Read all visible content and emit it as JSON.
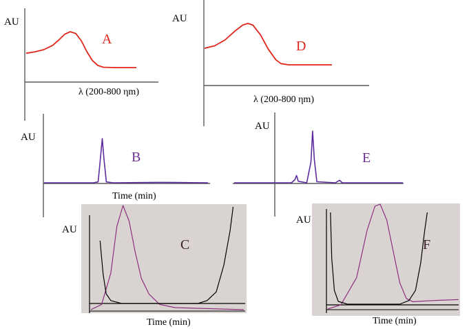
{
  "colors": {
    "uv_trace": "#e0261b",
    "chromatogram_trace": "#5b2a9e",
    "purity_trace": "#8e2f7e",
    "baseline_trace": "#000000",
    "panel_bg": "#d9d4d2",
    "axis": "#5a5a5a"
  },
  "chart_data": [
    {
      "panel": "A",
      "type": "line",
      "ylabel": "AU",
      "xlabel": "λ (200-800 ηm)",
      "series": [
        {
          "values": [
            [
              0,
              0.4
            ],
            [
              0.08,
              0.44
            ],
            [
              0.16,
              0.5
            ],
            [
              0.24,
              0.62
            ],
            [
              0.3,
              0.78
            ],
            [
              0.35,
              0.93
            ],
            [
              0.4,
              1.0
            ],
            [
              0.45,
              0.95
            ],
            [
              0.5,
              0.75
            ],
            [
              0.55,
              0.45
            ],
            [
              0.6,
              0.2
            ],
            [
              0.65,
              0.06
            ],
            [
              0.7,
              0.01
            ],
            [
              0.8,
              0.0
            ],
            [
              1.0,
              0.0
            ]
          ]
        }
      ]
    },
    {
      "panel": "D",
      "type": "line",
      "ylabel": "AU",
      "xlabel": "λ (200-800 ηm)",
      "series": [
        {
          "values": [
            [
              0,
              0.4
            ],
            [
              0.08,
              0.46
            ],
            [
              0.16,
              0.6
            ],
            [
              0.24,
              0.82
            ],
            [
              0.3,
              0.96
            ],
            [
              0.34,
              1.0
            ],
            [
              0.38,
              0.96
            ],
            [
              0.44,
              0.72
            ],
            [
              0.5,
              0.38
            ],
            [
              0.56,
              0.12
            ],
            [
              0.6,
              0.03
            ],
            [
              0.66,
              0.0
            ],
            [
              1.0,
              0.0
            ]
          ]
        }
      ]
    },
    {
      "panel": "B",
      "type": "line",
      "ylabel": "AU",
      "xlabel": "Time (min)",
      "series": [
        {
          "values": [
            [
              0,
              0.0
            ],
            [
              0.3,
              0.0
            ],
            [
              0.33,
              0.02
            ],
            [
              0.345,
              0.6
            ],
            [
              0.355,
              1.0
            ],
            [
              0.365,
              0.55
            ],
            [
              0.38,
              0.02
            ],
            [
              0.42,
              0.0
            ],
            [
              0.7,
              0.01
            ],
            [
              1.0,
              0.0
            ]
          ]
        }
      ]
    },
    {
      "panel": "E",
      "type": "line",
      "ylabel": "AU",
      "xlabel": "",
      "series": [
        {
          "values": [
            [
              0,
              0.0
            ],
            [
              0.34,
              0.0
            ],
            [
              0.36,
              0.06
            ],
            [
              0.37,
              0.14
            ],
            [
              0.38,
              0.03
            ],
            [
              0.43,
              0.0
            ],
            [
              0.455,
              0.4
            ],
            [
              0.465,
              1.0
            ],
            [
              0.475,
              0.45
            ],
            [
              0.49,
              0.02
            ],
            [
              0.6,
              0.0
            ],
            [
              0.625,
              0.05
            ],
            [
              0.64,
              0.0
            ],
            [
              1.0,
              0.0
            ]
          ]
        }
      ]
    },
    {
      "panel": "C",
      "type": "line",
      "ylabel": "AU",
      "xlabel": "Time (min)",
      "series": [
        {
          "values": [
            [
              0,
              0.0
            ],
            [
              0.07,
              0.05
            ],
            [
              0.13,
              0.35
            ],
            [
              0.17,
              0.8
            ],
            [
              0.21,
              1.0
            ],
            [
              0.25,
              0.85
            ],
            [
              0.29,
              0.55
            ],
            [
              0.33,
              0.3
            ],
            [
              0.38,
              0.15
            ],
            [
              0.45,
              0.05
            ],
            [
              0.55,
              0.02
            ],
            [
              1.0,
              0.0
            ]
          ]
        },
        {
          "values": [
            [
              0.06,
              0.65
            ],
            [
              0.08,
              0.3
            ],
            [
              0.1,
              0.1
            ],
            [
              0.13,
              0.03
            ],
            [
              0.2,
              0.0
            ],
            [
              0.7,
              0.0
            ],
            [
              0.76,
              0.03
            ],
            [
              0.82,
              0.12
            ],
            [
              0.87,
              0.4
            ],
            [
              0.91,
              0.75
            ],
            [
              0.93,
              1.0
            ]
          ]
        }
      ]
    },
    {
      "panel": "F",
      "type": "line",
      "ylabel": "AU",
      "xlabel": "Time (min)",
      "series": [
        {
          "values": [
            [
              0,
              0.0
            ],
            [
              0.1,
              0.04
            ],
            [
              0.22,
              0.3
            ],
            [
              0.3,
              0.75
            ],
            [
              0.36,
              0.98
            ],
            [
              0.4,
              1.0
            ],
            [
              0.45,
              0.85
            ],
            [
              0.5,
              0.55
            ],
            [
              0.55,
              0.25
            ],
            [
              0.6,
              0.1
            ],
            [
              0.65,
              0.07
            ],
            [
              0.8,
              0.08
            ],
            [
              1.0,
              0.09
            ]
          ]
        },
        {
          "values": [
            [
              0.02,
              1.0
            ],
            [
              0.03,
              0.5
            ],
            [
              0.05,
              0.15
            ],
            [
              0.08,
              0.03
            ],
            [
              0.15,
              0.0
            ],
            [
              0.55,
              0.0
            ],
            [
              0.62,
              0.04
            ],
            [
              0.67,
              0.15
            ],
            [
              0.71,
              0.45
            ],
            [
              0.74,
              0.8
            ],
            [
              0.76,
              1.0
            ]
          ]
        }
      ]
    }
  ]
}
